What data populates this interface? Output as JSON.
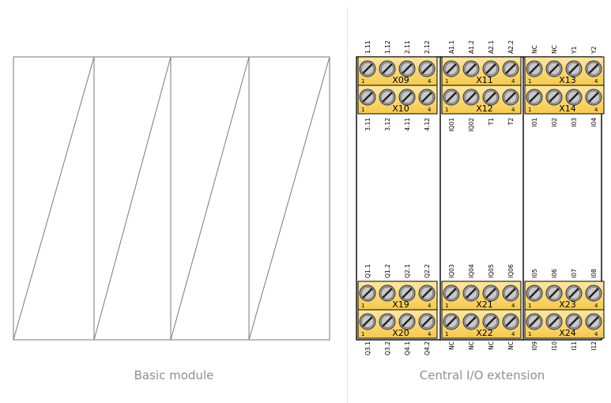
{
  "left_panel": {
    "caption": "Basic module"
  },
  "right_panel": {
    "caption": "Central I/O extension",
    "pin_number_first": "1",
    "pin_number_last": "4",
    "top_labels": [
      [
        "1.11",
        "1.12",
        "2.11",
        "2.12"
      ],
      [
        "A1.1",
        "A1.2",
        "A2.1",
        "A2.2"
      ],
      [
        "NC",
        "NC",
        "Y1",
        "Y2"
      ]
    ],
    "upper_mid_labels": [
      [
        "3.11",
        "3.12",
        "4.11",
        "4.12"
      ],
      [
        "IQ01",
        "IQ02",
        "T1",
        "T2"
      ],
      [
        "I01",
        "I02",
        "I03",
        "I04"
      ]
    ],
    "lower_mid_labels": [
      [
        "Q1.1",
        "Q1.2",
        "Q2.1",
        "Q2.2"
      ],
      [
        "IQ03",
        "IQ04",
        "IQ05",
        "IQ06"
      ],
      [
        "I05",
        "I06",
        "I07",
        "I08"
      ]
    ],
    "bottom_labels": [
      [
        "Q3.1",
        "Q3.2",
        "Q4.1",
        "Q4.2"
      ],
      [
        "NC",
        "NC",
        "NC",
        "NC"
      ],
      [
        "I09",
        "I10",
        "I11",
        "I12"
      ]
    ],
    "terminal_names": {
      "row1": [
        "X09",
        "X11",
        "X13"
      ],
      "row2": [
        "X10",
        "X12",
        "X14"
      ],
      "row3": [
        "X19",
        "X21",
        "X23"
      ],
      "row4": [
        "X20",
        "X22",
        "X24"
      ]
    },
    "colors": {
      "terminal_fill": "#f6c94a",
      "terminal_fill_light": "#fde7a1",
      "screw": "#9a9a9a",
      "outline": "#000000"
    }
  }
}
